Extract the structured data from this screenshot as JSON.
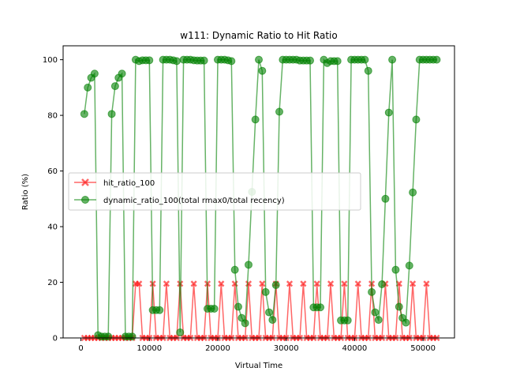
{
  "chart_data": {
    "type": "line",
    "title": "w111: Dynamic Ratio to Hit Ratio",
    "xlabel": "Virtual Time",
    "ylabel": "Ratio (%)",
    "xlim": [
      -2600,
      54600
    ],
    "ylim": [
      0,
      105
    ],
    "xticks": [
      0,
      10000,
      20000,
      30000,
      40000,
      50000
    ],
    "yticks": [
      0,
      20,
      40,
      60,
      80,
      100
    ],
    "legend_position": "center-left",
    "series": [
      {
        "name": "hit_ratio_100",
        "color": "#ff0000",
        "marker": "x",
        "x": [
          500,
          1000,
          1500,
          2000,
          2500,
          3000,
          3500,
          4000,
          4500,
          5000,
          5500,
          6000,
          6500,
          7000,
          7500,
          8000,
          8500,
          9000,
          9500,
          10000,
          10500,
          11000,
          11500,
          12000,
          12500,
          13000,
          13500,
          14000,
          14500,
          15000,
          15500,
          16000,
          16500,
          17000,
          17500,
          18000,
          18500,
          19000,
          19500,
          20000,
          20500,
          21000,
          21500,
          22000,
          22500,
          23000,
          23500,
          24000,
          24500,
          25000,
          25500,
          26000,
          26500,
          27000,
          27500,
          28000,
          28500,
          29000,
          29500,
          30000,
          30500,
          31000,
          31500,
          32000,
          32500,
          33000,
          33500,
          34000,
          34500,
          35000,
          35500,
          36000,
          36500,
          37000,
          37500,
          38000,
          38500,
          39000,
          39500,
          40000,
          40500,
          41000,
          41500,
          42000,
          42500,
          43000,
          43500,
          44000,
          44500,
          45000,
          45500,
          46000,
          46500,
          47000,
          47500,
          48000,
          48500,
          49000,
          49500,
          50000,
          50500,
          51000,
          51500,
          52000
        ],
        "y": [
          0,
          0,
          0,
          0,
          0,
          0,
          0,
          0,
          0,
          0,
          0,
          0,
          0,
          0,
          0,
          19.5,
          19.5,
          0,
          0,
          0,
          19.5,
          0,
          0,
          0,
          19.5,
          0,
          0,
          0,
          19.5,
          0,
          0,
          0,
          19.5,
          0,
          0,
          0,
          19.5,
          0,
          0,
          0,
          19.5,
          0,
          0,
          0,
          19.5,
          0,
          0,
          0,
          19.5,
          0,
          0,
          0,
          19.5,
          0,
          0,
          0,
          19.5,
          0,
          0,
          0,
          19.5,
          0,
          0,
          0,
          19.5,
          0,
          0,
          0,
          19.5,
          0,
          0,
          0,
          19.5,
          0,
          0,
          0,
          19.5,
          0,
          0,
          0,
          19.5,
          0,
          0,
          0,
          19.5,
          0,
          0,
          0,
          19.5,
          0,
          0,
          0,
          19.5,
          0,
          0,
          0,
          19.5,
          0,
          0,
          0,
          19.5,
          0,
          0,
          0
        ]
      },
      {
        "name": "dynamic_ratio_100(total rmax0/total recency)",
        "color": "#008000",
        "marker": "o",
        "x": [
          500,
          1000,
          1500,
          2000,
          2500,
          3000,
          3500,
          4000,
          4500,
          5000,
          5500,
          6000,
          6500,
          7000,
          7500,
          8000,
          8500,
          9000,
          9500,
          10000,
          10500,
          11000,
          11500,
          12000,
          12500,
          13000,
          13500,
          14000,
          14500,
          15000,
          15500,
          16000,
          16500,
          17000,
          17500,
          18000,
          18500,
          19000,
          19500,
          20000,
          20500,
          21000,
          21500,
          22000,
          22500,
          23000,
          23500,
          24000,
          24500,
          25000,
          25500,
          26000,
          26500,
          27000,
          27500,
          28000,
          28500,
          29000,
          29500,
          30000,
          30500,
          31000,
          31500,
          32000,
          32500,
          33000,
          33500,
          34000,
          34500,
          35000,
          35500,
          36000,
          36500,
          37000,
          37500,
          38000,
          38500,
          39000,
          39500,
          40000,
          40500,
          41000,
          41500,
          42000,
          42500,
          43000,
          43500,
          44000,
          44500,
          45000,
          45500,
          46000,
          46500,
          47000,
          47500,
          48000,
          48500,
          49000,
          49500,
          50000,
          50500,
          51000,
          51500,
          52000
        ],
        "y": [
          80.5,
          90,
          93.5,
          95,
          1,
          0.5,
          0.5,
          0.5,
          80.5,
          90.5,
          93.5,
          95,
          0.5,
          0.5,
          0.5,
          100,
          99.5,
          99.8,
          99.8,
          99.8,
          10,
          10,
          10,
          100,
          100,
          100,
          99.8,
          99.5,
          2,
          100,
          100,
          100,
          99.8,
          99.7,
          99.7,
          99.7,
          10.5,
          10.5,
          10.5,
          100,
          100,
          100,
          99.8,
          99.5,
          24.5,
          11.2,
          7.2,
          5.3,
          26.3,
          52.5,
          78.5,
          100,
          96,
          16.5,
          9.2,
          6.5,
          19,
          81.3,
          100,
          100,
          100,
          100,
          100,
          99.7,
          99.7,
          99.7,
          99.7,
          11,
          11,
          11,
          100,
          98.8,
          99.5,
          99.5,
          99.5,
          6.3,
          6.3,
          6.3,
          100,
          100,
          100,
          100,
          100,
          96,
          16.5,
          9.2,
          6.5,
          19.3,
          50,
          81,
          100,
          24.5,
          11.2,
          7.2,
          5.5,
          26,
          52.3,
          78.5,
          100,
          100,
          100,
          100,
          100,
          100
        ]
      }
    ]
  }
}
